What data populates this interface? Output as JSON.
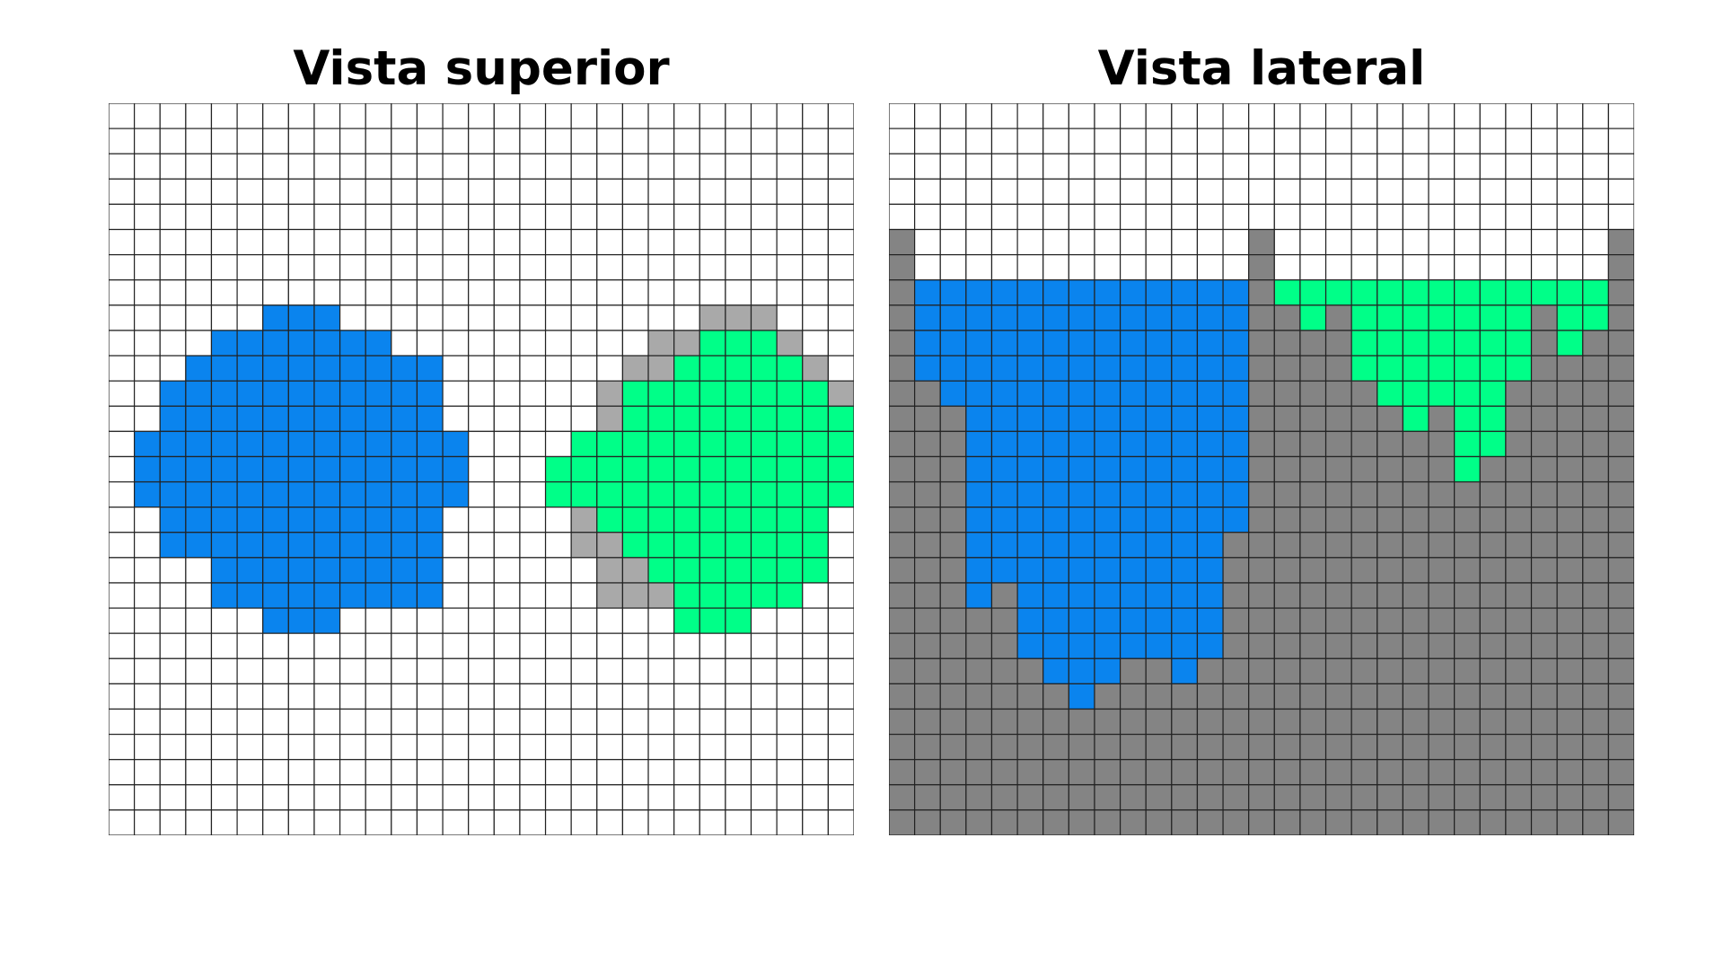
{
  "panels": [
    {
      "id": "top",
      "title": "Vista superior",
      "cols": 29,
      "rows": 29,
      "legend": {
        ".": "empty",
        "B": "blue",
        "G": "green",
        "L": "light-gray"
      },
      "grid": [
        ".............................",
        ".............................",
        ".............................",
        ".............................",
        ".............................",
        ".............................",
        ".............................",
        ".............................",
        "......BBB..............LLL...",
        "....BBBBBBB..........LLGGGL..",
        "...BBBBBBBBBB.......LLGGGGGL.",
        "..BBBBBBBBBBB......LGGGGGGGGL",
        "..BBBBBBBBBBB......LGGGGGGGGG",
        ".BBBBBBBBBBBBB....GGGGGGGGGGG",
        ".BBBBBBBBBBBBB...GGGGGGGGGGGG",
        ".BBBBBBBBBBBBB...GGGGGGGGGGGG",
        "..BBBBBBBBBBB.....LGGGGGGGGG.",
        "..BBBBBBBBBBB.....LLGGGGGGGG.",
        "....BBBBBBBBB......LLGGGGGGG.",
        "....BBBBBBBBB......LLLGGGGG..",
        "......BBB.............GGG....",
        ".............................",
        ".............................",
        ".............................",
        ".............................",
        ".............................",
        ".............................",
        ".............................",
        "............................."
      ]
    },
    {
      "id": "side",
      "title": "Vista lateral",
      "cols": 29,
      "rows": 29,
      "legend": {
        ".": "empty",
        "B": "blue",
        "G": "green",
        "D": "dark-gray"
      },
      "grid": [
        ".............................",
        ".............................",
        ".............................",
        ".............................",
        ".............................",
        "D.............D.............D",
        "D.............D.............D",
        "DBBBBBBBBBBBBBDGGGGGGGGGGGGGD",
        "DBBBBBBBBBBBBBDDGDGGGGGGGDGGD",
        "DBBBBBBBBBBBBBDDDDGGGGGGGDGDD",
        "DBBBBBBBBBBBBBDDDDGGGGGGGDDDD",
        "DDBBBBBBBBBBBBDDDDDGGGGGDDDDD",
        "DDDBBBBBBBBBBBDDDDDDGDGGDDDDD",
        "DDDBBBBBBBBBBBDDDDDDDDGGDDDDD",
        "DDDBBBBBBBBBBBDDDDDDDDGDDDDDD",
        "DDDBBBBBBBBBBBDDDDDDDDDDDDDDD",
        "DDDBBBBBBBBBBBDDDDDDDDDDDDDDD",
        "DDDBBBBBBBBBBDDDDDDDDDDDDDDDD",
        "DDDBBBBBBBBBBDDDDDDDDDDDDDDDD",
        "DDDBDBBBBBBBBDDDDDDDDDDDDDDDD",
        "DDDDDBBBBBBBBDDDDDDDDDDDDDDDD",
        "DDDDDBBBBBBBBDDDDDDDDDDDDDDDD",
        "DDDDDDBBBDDBDDDDDDDDDDDDDDDDD",
        "DDDDDDDBDDDDDDDDDDDDDDDDDDDDD",
        "DDDDDDDDDDDDDDDDDDDDDDDDDDDDD",
        "DDDDDDDDDDDDDDDDDDDDDDDDDDDDD",
        "DDDDDDDDDDDDDDDDDDDDDDDDDDDDD",
        "DDDDDDDDDDDDDDDDDDDDDDDDDDDDD",
        "DDDDDDDDDDDDDDDDDDDDDDDDDDDDD"
      ]
    }
  ],
  "colors": {
    "empty": "#ffffff",
    "blue": "#0a84ee",
    "green": "#00ff88",
    "light-gray": "#a9a9a9",
    "dark-gray": "#848484",
    "grid-line": "#222222"
  }
}
